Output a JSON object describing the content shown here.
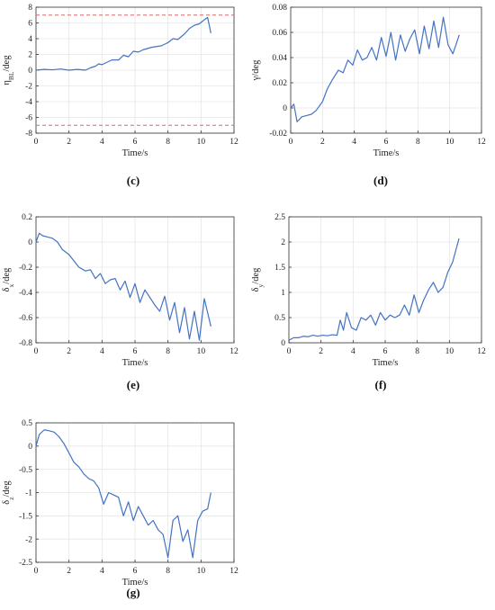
{
  "colors": {
    "line": "#4472C4",
    "limit": "#E06666",
    "grid": "#E6E6E6",
    "axis": "#333333"
  },
  "chart_data": [
    {
      "id": "c",
      "type": "line",
      "caption": "(c)",
      "ylabel": "η_BL/deg",
      "ylabel_main": "η",
      "ylabel_sub": "BL",
      "ylabel_tail": "/deg",
      "xlabel": "Time/s",
      "xlim": [
        0,
        12
      ],
      "ylim": [
        -8,
        8
      ],
      "xticks": [
        0,
        2,
        4,
        6,
        8,
        10,
        12
      ],
      "yticks": [
        -8,
        -6,
        -4,
        -2,
        0,
        2,
        4,
        6,
        8
      ],
      "ytick_labels": [
        "-8",
        "-6",
        "-4",
        "-2",
        "0",
        "2",
        "4",
        "6",
        "8"
      ],
      "grid": true,
      "limits": [
        7,
        -7
      ],
      "x": [
        0,
        0.5,
        1,
        1.5,
        2,
        2.5,
        3,
        3.3,
        3.6,
        3.8,
        4.0,
        4.3,
        4.6,
        5.0,
        5.3,
        5.6,
        5.9,
        6.2,
        6.5,
        7.0,
        7.3,
        7.6,
        8.0,
        8.3,
        8.6,
        9.0,
        9.3,
        9.6,
        9.9,
        10.2,
        10.4,
        10.6
      ],
      "series": [
        {
          "values": [
            0,
            0.1,
            0.05,
            0.15,
            0,
            0.1,
            0,
            0.3,
            0.5,
            0.8,
            0.7,
            1.0,
            1.3,
            1.3,
            1.9,
            1.7,
            2.4,
            2.3,
            2.6,
            2.9,
            3.0,
            3.1,
            3.5,
            4.0,
            3.9,
            4.6,
            5.3,
            5.7,
            5.9,
            6.4,
            6.7,
            4.7
          ]
        }
      ]
    },
    {
      "id": "d",
      "type": "line",
      "caption": "(d)",
      "ylabel": "γ/deg",
      "ylabel_main": "γ/deg",
      "ylabel_sub": "",
      "ylabel_tail": "",
      "xlabel": "Time/s",
      "xlim": [
        0,
        12
      ],
      "ylim": [
        -0.02,
        0.08
      ],
      "xticks": [
        0,
        2,
        4,
        6,
        8,
        10,
        12
      ],
      "yticks": [
        -0.02,
        0,
        0.02,
        0.04,
        0.06,
        0.08
      ],
      "ytick_labels": [
        "-0.02",
        "0",
        "0.02",
        "0.04",
        "0.06",
        "0.08"
      ],
      "grid": true,
      "x": [
        0,
        0.2,
        0.4,
        0.7,
        1.0,
        1.3,
        1.6,
        2.0,
        2.3,
        2.6,
        3.0,
        3.3,
        3.6,
        3.9,
        4.2,
        4.5,
        4.8,
        5.1,
        5.4,
        5.7,
        6.0,
        6.3,
        6.6,
        6.9,
        7.2,
        7.5,
        7.8,
        8.1,
        8.4,
        8.7,
        9.0,
        9.3,
        9.6,
        9.9,
        10.2,
        10.6
      ],
      "series": [
        {
          "values": [
            0,
            0.003,
            -0.011,
            -0.007,
            -0.006,
            -0.005,
            -0.002,
            0.005,
            0.015,
            0.022,
            0.03,
            0.028,
            0.038,
            0.034,
            0.046,
            0.038,
            0.04,
            0.048,
            0.038,
            0.056,
            0.041,
            0.06,
            0.038,
            0.058,
            0.045,
            0.055,
            0.062,
            0.043,
            0.065,
            0.047,
            0.069,
            0.048,
            0.072,
            0.05,
            0.043,
            0.058
          ]
        }
      ]
    },
    {
      "id": "e",
      "type": "line",
      "caption": "(e)",
      "ylabel": "δ_x/deg",
      "ylabel_main": "δ",
      "ylabel_sub": "x",
      "ylabel_tail": "/deg",
      "xlabel": "Time/s",
      "xlim": [
        0,
        12
      ],
      "ylim": [
        -0.8,
        0.2
      ],
      "xticks": [
        0,
        2,
        4,
        6,
        8,
        10,
        12
      ],
      "yticks": [
        -0.8,
        -0.6,
        -0.4,
        -0.2,
        0,
        0.2
      ],
      "ytick_labels": [
        "-0.8",
        "-0.6",
        "-0.4",
        "-0.2",
        "0",
        "0.2"
      ],
      "grid": true,
      "x": [
        0,
        0.2,
        0.4,
        0.7,
        1.0,
        1.3,
        1.6,
        2.0,
        2.3,
        2.6,
        3.0,
        3.3,
        3.6,
        3.9,
        4.2,
        4.5,
        4.8,
        5.1,
        5.4,
        5.7,
        6.0,
        6.3,
        6.6,
        6.9,
        7.2,
        7.5,
        7.8,
        8.1,
        8.4,
        8.7,
        9.0,
        9.3,
        9.6,
        9.9,
        10.2,
        10.6
      ],
      "series": [
        {
          "values": [
            0,
            0.07,
            0.05,
            0.04,
            0.03,
            0.0,
            -0.06,
            -0.1,
            -0.15,
            -0.2,
            -0.23,
            -0.22,
            -0.29,
            -0.25,
            -0.33,
            -0.3,
            -0.29,
            -0.38,
            -0.31,
            -0.44,
            -0.33,
            -0.48,
            -0.38,
            -0.44,
            -0.5,
            -0.55,
            -0.43,
            -0.62,
            -0.48,
            -0.72,
            -0.52,
            -0.77,
            -0.55,
            -0.78,
            -0.45,
            -0.67
          ]
        }
      ]
    },
    {
      "id": "f",
      "type": "line",
      "caption": "(f)",
      "ylabel": "δ_y/deg",
      "ylabel_main": "δ",
      "ylabel_sub": "y",
      "ylabel_tail": "/deg",
      "xlabel": "Time/s",
      "xlim": [
        0,
        12
      ],
      "ylim": [
        0,
        2.5
      ],
      "xticks": [
        0,
        2,
        4,
        6,
        8,
        10,
        12
      ],
      "yticks": [
        0,
        0.5,
        1,
        1.5,
        2,
        2.5
      ],
      "ytick_labels": [
        "0",
        "0.5",
        "1",
        "1.5",
        "2",
        "2.5"
      ],
      "grid": true,
      "x": [
        0,
        0.3,
        0.6,
        0.9,
        1.2,
        1.5,
        1.8,
        2.1,
        2.4,
        2.7,
        3.0,
        3.2,
        3.4,
        3.6,
        3.9,
        4.2,
        4.5,
        4.8,
        5.1,
        5.4,
        5.7,
        6.0,
        6.3,
        6.6,
        6.9,
        7.2,
        7.5,
        7.8,
        8.1,
        8.4,
        8.7,
        9.0,
        9.3,
        9.6,
        9.9,
        10.2,
        10.6
      ],
      "series": [
        {
          "values": [
            0.05,
            0.1,
            0.1,
            0.13,
            0.12,
            0.15,
            0.13,
            0.15,
            0.14,
            0.16,
            0.15,
            0.45,
            0.25,
            0.6,
            0.3,
            0.25,
            0.5,
            0.45,
            0.55,
            0.35,
            0.6,
            0.45,
            0.55,
            0.5,
            0.55,
            0.75,
            0.55,
            0.95,
            0.6,
            0.85,
            1.05,
            1.2,
            1.0,
            1.1,
            1.4,
            1.6,
            2.07
          ]
        }
      ]
    },
    {
      "id": "g",
      "type": "line",
      "caption": "(g)",
      "ylabel": "δ_z/deg",
      "ylabel_main": "δ",
      "ylabel_sub": "z",
      "ylabel_tail": "/deg",
      "xlabel": "Time/s",
      "xlim": [
        0,
        12
      ],
      "ylim": [
        -2.5,
        0.5
      ],
      "xticks": [
        0,
        2,
        4,
        6,
        8,
        10,
        12
      ],
      "yticks": [
        -2.5,
        -2,
        -1.5,
        -1,
        -0.5,
        0,
        0.5
      ],
      "ytick_labels": [
        "-2.5",
        "-2",
        "-1.5",
        "-1",
        "-0.5",
        "0",
        "0.5"
      ],
      "grid": true,
      "x": [
        0,
        0.2,
        0.5,
        0.8,
        1.1,
        1.4,
        1.7,
        2.0,
        2.3,
        2.6,
        2.9,
        3.2,
        3.5,
        3.8,
        4.1,
        4.4,
        4.7,
        5.0,
        5.3,
        5.6,
        5.9,
        6.2,
        6.5,
        6.8,
        7.1,
        7.4,
        7.7,
        8.0,
        8.3,
        8.6,
        8.9,
        9.2,
        9.5,
        9.8,
        10.1,
        10.4,
        10.6
      ],
      "series": [
        {
          "values": [
            0,
            0.25,
            0.35,
            0.33,
            0.3,
            0.2,
            0.05,
            -0.15,
            -0.35,
            -0.45,
            -0.6,
            -0.7,
            -0.75,
            -0.9,
            -1.25,
            -1.0,
            -1.05,
            -1.1,
            -1.5,
            -1.2,
            -1.6,
            -1.3,
            -1.5,
            -1.7,
            -1.6,
            -1.8,
            -1.9,
            -2.4,
            -1.6,
            -1.5,
            -2.05,
            -1.8,
            -2.4,
            -1.6,
            -1.4,
            -1.35,
            -1.0
          ]
        }
      ]
    }
  ]
}
